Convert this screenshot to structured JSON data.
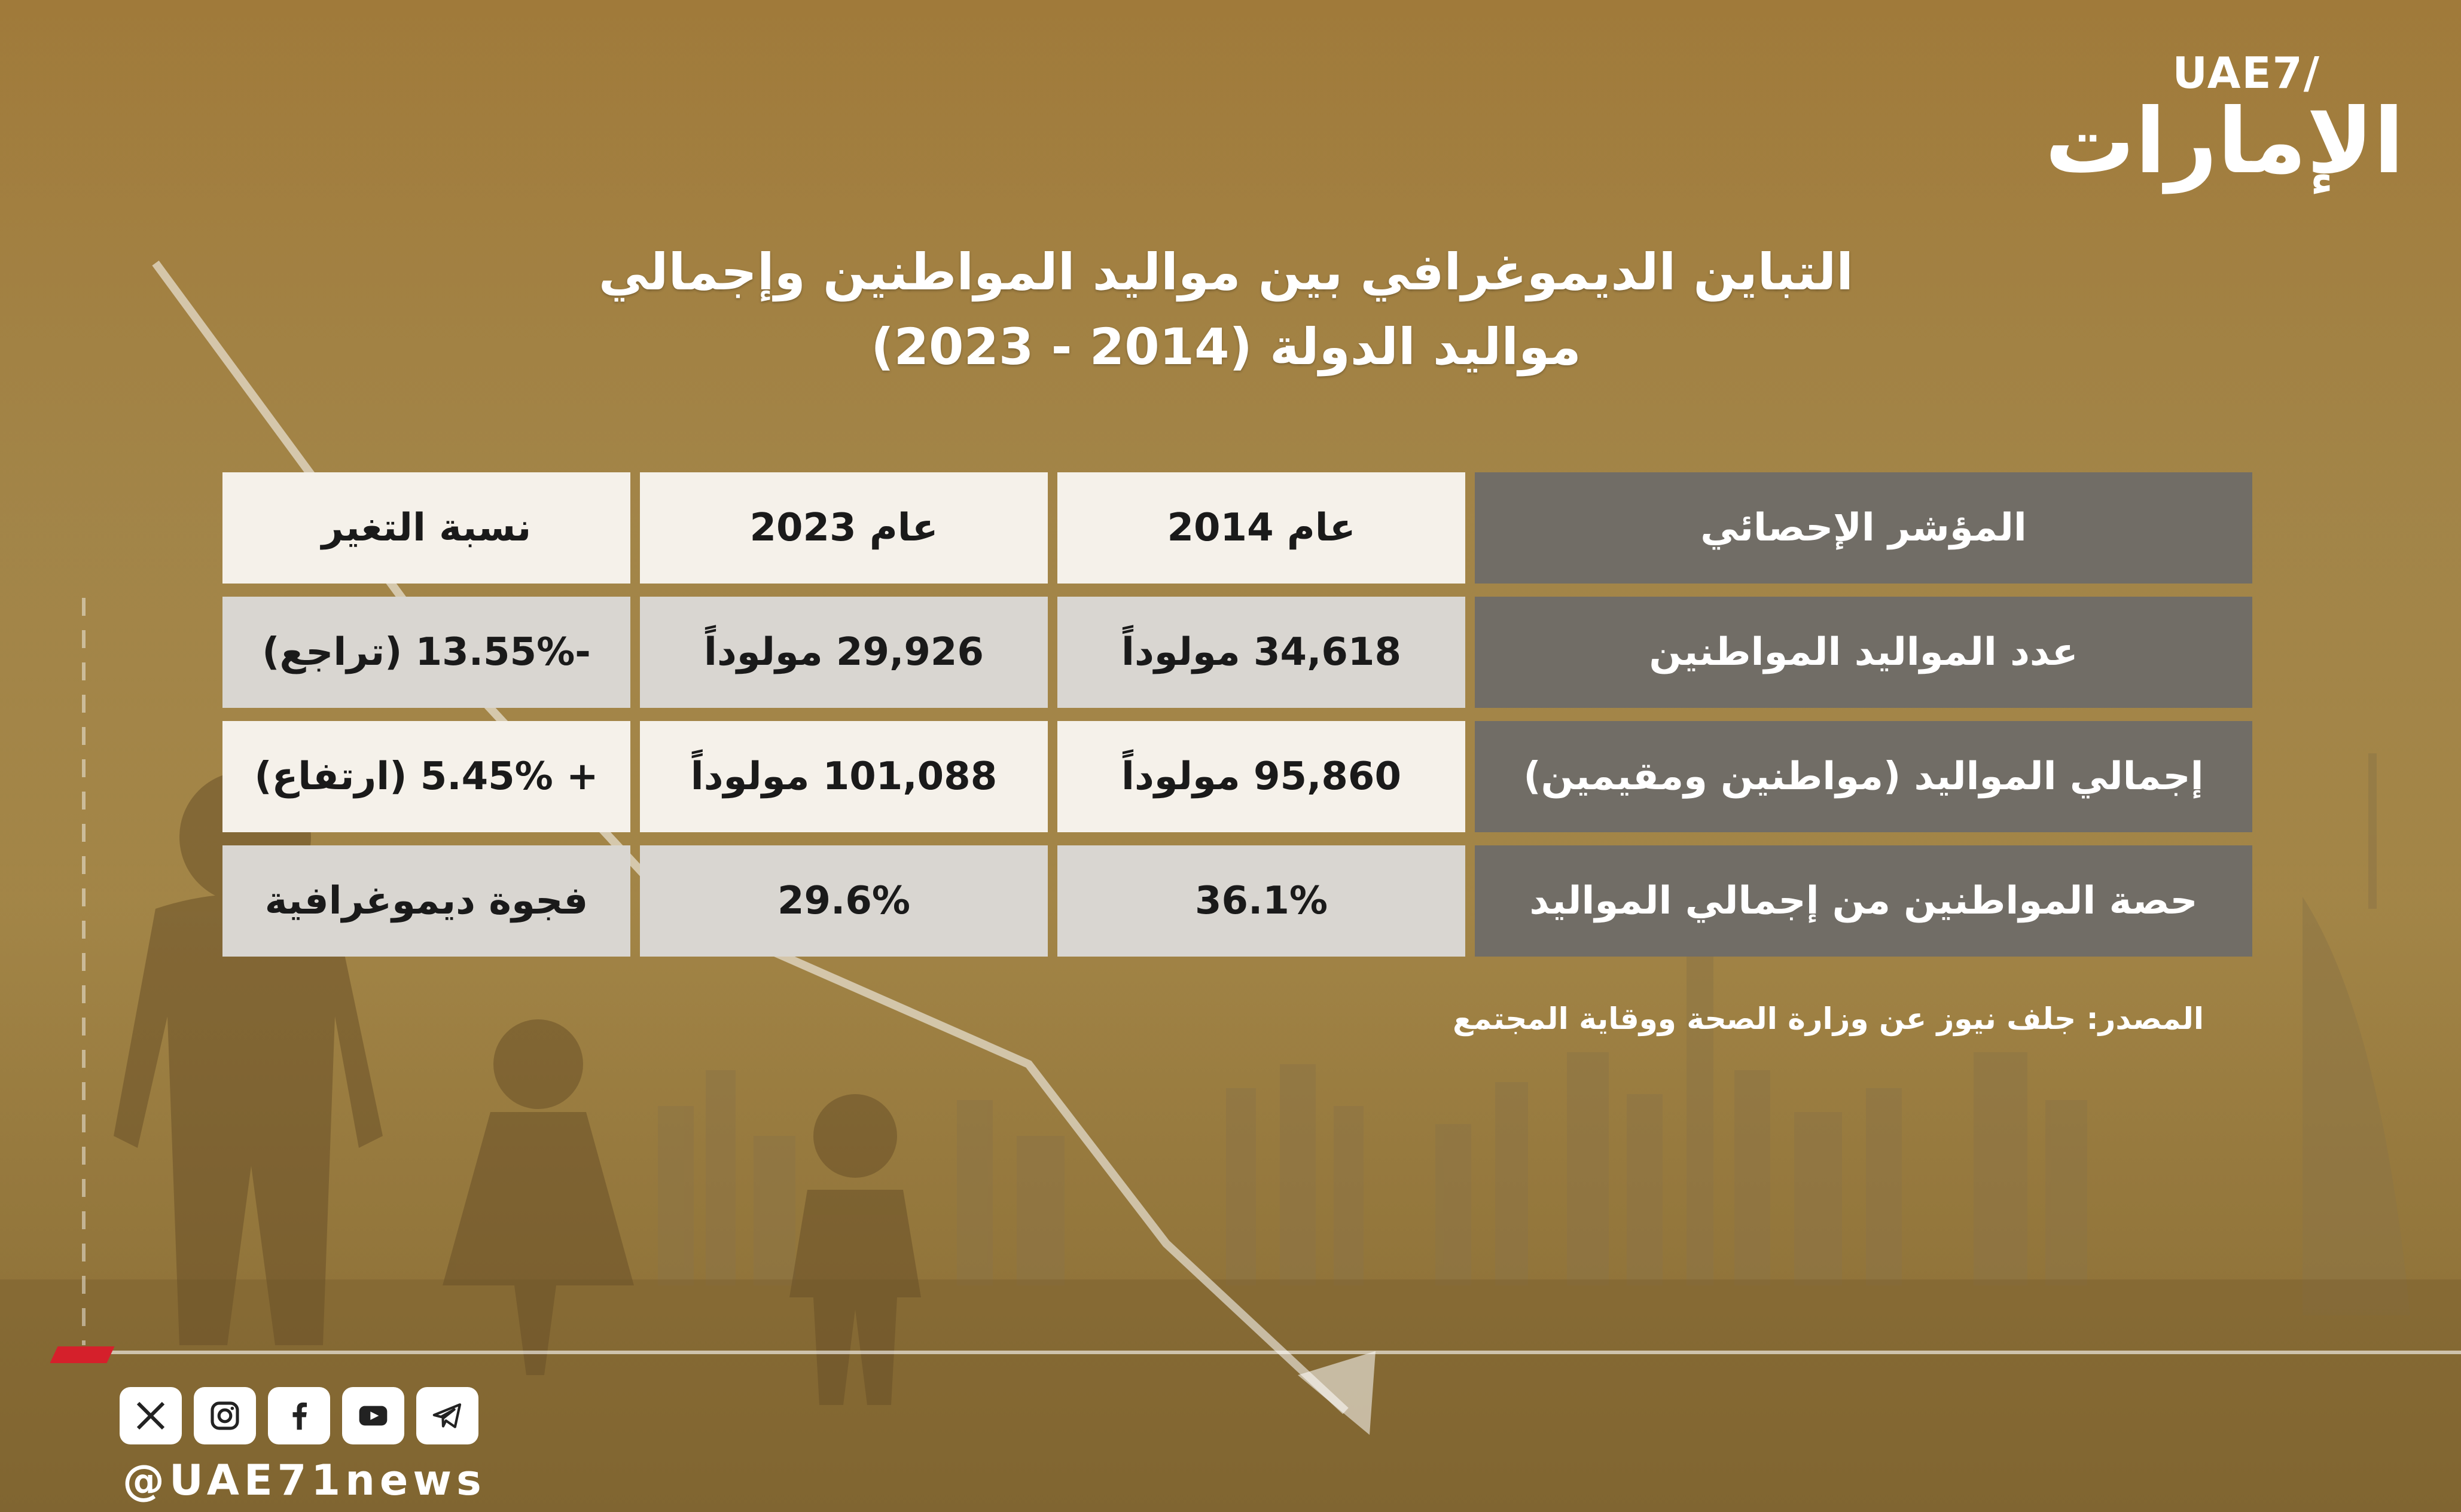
{
  "logo": {
    "latin": "UAE7/",
    "arabic": "الإمارات"
  },
  "title": {
    "line1": "التباين الديموغرافي بين مواليد المواطنين وإجمالي",
    "line2": "مواليد الدولة (2014 - 2023)"
  },
  "table": {
    "header": [
      "المؤشر الإحصائي",
      "عام 2014",
      "عام 2023",
      "نسبة التغير"
    ],
    "rows": [
      [
        "عدد المواليد المواطنين",
        "34,618 مولوداً",
        "29,926 مولوداً",
        "-13.55% (تراجع)"
      ],
      [
        "إجمالي المواليد (مواطنين ومقيمين)",
        "95,860 مولوداً",
        "101,088 مولوداً",
        "+ 5.45% (ارتفاع)"
      ],
      [
        "حصة المواطنين من إجمالي المواليد",
        "36.1%",
        "29.6%",
        "فجوة ديموغرافية"
      ]
    ]
  },
  "source": "المصدر: جلف نيوز عن وزارة الصحة ووقاية المجتمع",
  "social": {
    "icons": [
      "x-icon",
      "instagram-icon",
      "facebook-icon",
      "youtube-icon",
      "telegram-icon"
    ],
    "handle": "@UAE71news"
  },
  "colors": {
    "background": "#a88a4c",
    "dark_cell": "#716d66",
    "light_cell": "#f5f1ea",
    "mid_cell": "#d9d6d1",
    "accent_red": "#d5202b"
  }
}
